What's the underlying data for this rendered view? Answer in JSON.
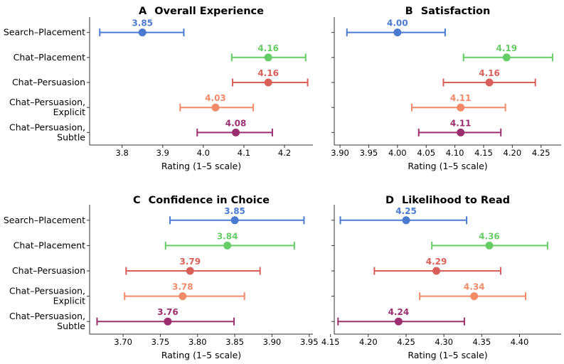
{
  "chart_data": [
    {
      "type": "dot-errorbar",
      "panel_letter": "A",
      "title": "Overall Experience",
      "xlabel": "Rating (1–5 scale)",
      "xlim": [
        3.72,
        4.27
      ],
      "xticks": [
        "3.8",
        "3.9",
        "4.0",
        "4.1",
        "4.2"
      ],
      "tick_values": [
        3.8,
        3.9,
        4.0,
        4.1,
        4.2
      ],
      "categories": [
        "Search–Placement",
        "Chat–Placement",
        "Chat–Persuasion",
        "Chat–Persuasion,\nExplicit",
        "Chat–Persuasion,\nSubtle"
      ],
      "values": [
        3.85,
        4.16,
        4.16,
        4.03,
        4.08
      ],
      "labels": [
        "3.85",
        "4.16",
        "4.16",
        "4.03",
        "4.08"
      ],
      "ci_low": [
        3.745,
        4.07,
        4.072,
        3.943,
        3.985
      ],
      "ci_high": [
        3.952,
        4.252,
        4.257,
        4.123,
        4.17
      ]
    },
    {
      "type": "dot-errorbar",
      "panel_letter": "B",
      "title": "Satisfaction",
      "xlabel": "Rating (1–5 scale)",
      "xlim": [
        3.89,
        4.285
      ],
      "xticks": [
        "3.90",
        "3.95",
        "4.00",
        "4.05",
        "4.10",
        "4.15",
        "4.20",
        "4.25"
      ],
      "tick_values": [
        3.9,
        3.95,
        4.0,
        4.05,
        4.1,
        4.15,
        4.2,
        4.25
      ],
      "categories": [
        "Search–Placement",
        "Chat–Placement",
        "Chat–Persuasion",
        "Chat–Persuasion,\nExplicit",
        "Chat–Persuasion,\nSubtle"
      ],
      "values": [
        4.0,
        4.19,
        4.16,
        4.11,
        4.11
      ],
      "labels": [
        "4.00",
        "4.19",
        "4.16",
        "4.11",
        "4.11"
      ],
      "ci_low": [
        3.912,
        4.115,
        4.08,
        4.025,
        4.037
      ],
      "ci_high": [
        4.083,
        4.27,
        4.24,
        4.188,
        4.18
      ]
    },
    {
      "type": "dot-errorbar",
      "panel_letter": "C",
      "title": "Confidence in Choice",
      "xlabel": "Rating (1–5 scale)",
      "xlim": [
        3.655,
        3.955
      ],
      "xticks": [
        "3.70",
        "3.75",
        "3.80",
        "3.85",
        "3.90",
        "3.95"
      ],
      "tick_values": [
        3.7,
        3.75,
        3.8,
        3.85,
        3.9,
        3.95
      ],
      "categories": [
        "Search–Placement",
        "Chat–Placement",
        "Chat–Persuasion",
        "Chat–Persuasion,\nExplicit",
        "Chat–Persuasion,\nSubtle"
      ],
      "values": [
        3.85,
        3.84,
        3.79,
        3.78,
        3.76
      ],
      "labels": [
        "3.85",
        "3.84",
        "3.79",
        "3.78",
        "3.76"
      ],
      "ci_low": [
        3.763,
        3.757,
        3.704,
        3.702,
        3.665
      ],
      "ci_high": [
        3.943,
        3.93,
        3.884,
        3.863,
        3.849
      ]
    },
    {
      "type": "dot-errorbar",
      "panel_letter": "D",
      "title": "Likelihood to Read",
      "xlabel": "Rating (1–5 scale)",
      "xlim": [
        4.155,
        4.455
      ],
      "xticks": [
        "4.15",
        "4.20",
        "4.25",
        "4.30",
        "4.35",
        "4.40"
      ],
      "tick_values": [
        4.15,
        4.2,
        4.25,
        4.3,
        4.35,
        4.4
      ],
      "categories": [
        "Search–Placement",
        "Chat–Placement",
        "Chat–Persuasion",
        "Chat–Persuasion,\nExplicit",
        "Chat–Persuasion,\nSubtle"
      ],
      "values": [
        4.25,
        4.36,
        4.29,
        4.34,
        4.24
      ],
      "labels": [
        "4.25",
        "4.36",
        "4.29",
        "4.34",
        "4.24"
      ],
      "ci_low": [
        4.163,
        4.284,
        4.208,
        4.268,
        4.16
      ],
      "ci_high": [
        4.33,
        4.437,
        4.375,
        4.408,
        4.327
      ]
    }
  ],
  "colors": {
    "series": [
      "#4a7bd0",
      "#66cc66",
      "#d9605a",
      "#f08a68",
      "#9b2f6f"
    ],
    "axis": "#333333"
  }
}
